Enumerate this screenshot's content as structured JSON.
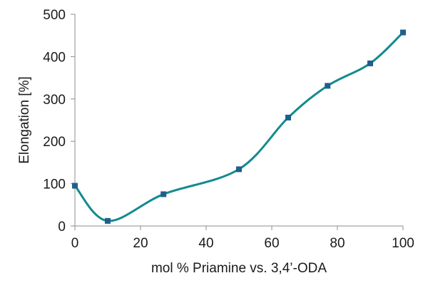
{
  "chart_data": {
    "type": "line",
    "title": "",
    "xlabel": "mol % Priamine vs. 3,4’-ODA",
    "ylabel": "Elongation [%]",
    "xlim": [
      0,
      100
    ],
    "ylim": [
      0,
      500
    ],
    "xticks": [
      0,
      20,
      40,
      60,
      80,
      100
    ],
    "yticks": [
      0,
      100,
      200,
      300,
      400,
      500
    ],
    "grid": false,
    "legend": "none",
    "smooth": true,
    "series": [
      {
        "color": "#148a8e",
        "marker_color": "#1f5f8c",
        "marker": "square",
        "x": [
          0,
          10,
          27,
          50,
          65,
          77,
          90,
          100
        ],
        "y": [
          95,
          12,
          75,
          134,
          256,
          331,
          384,
          457
        ]
      }
    ]
  }
}
